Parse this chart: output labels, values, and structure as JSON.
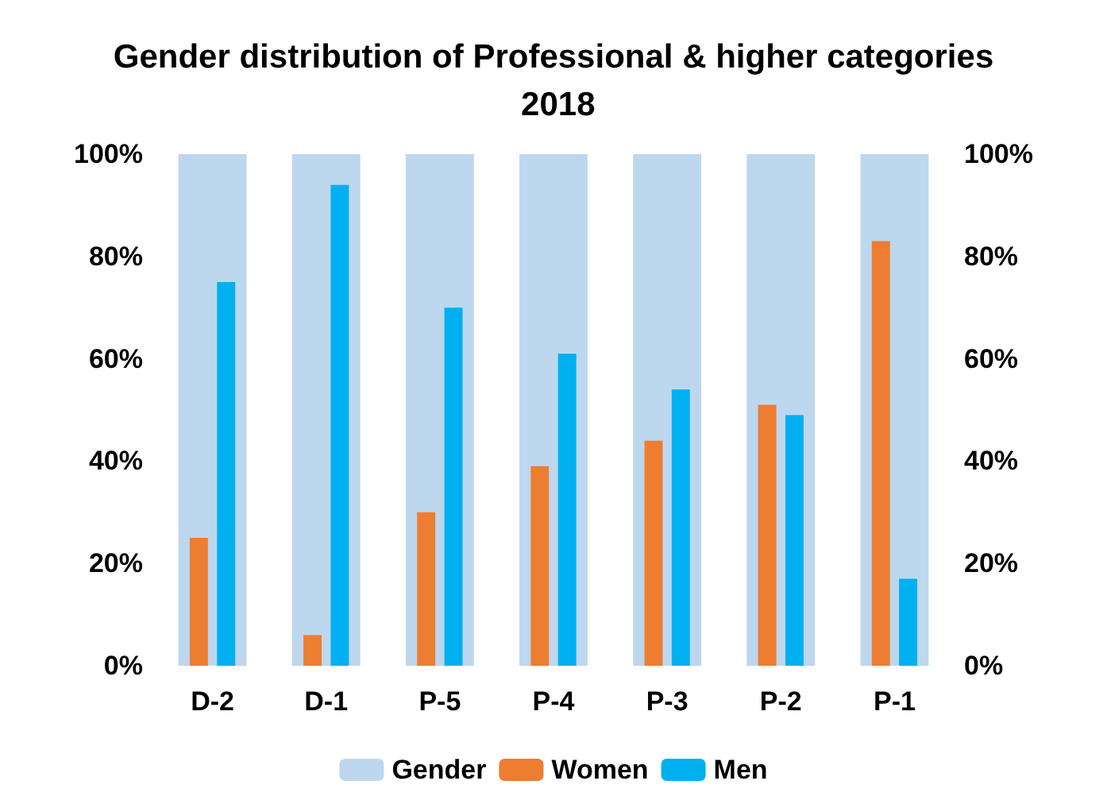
{
  "chart_data": {
    "type": "bar",
    "title": "Gender distribution of Professional & higher categories 2018",
    "categories": [
      "D-2",
      "D-1",
      "P-5",
      "P-4",
      "P-3",
      "P-2",
      "P-1"
    ],
    "series": [
      {
        "name": "Gender",
        "color": "#bdd7ee",
        "axis": "y2",
        "values": [
          100,
          100,
          100,
          100,
          100,
          100,
          100
        ]
      },
      {
        "name": "Women",
        "color": "#ed7d31",
        "values": [
          25,
          6,
          30,
          39,
          44,
          51,
          83
        ]
      },
      {
        "name": "Men",
        "color": "#00b0f0",
        "values": [
          75,
          94,
          70,
          61,
          54,
          49,
          17
        ]
      }
    ],
    "ylim": [
      0,
      100
    ],
    "yticks": [
      {
        "value": 0,
        "label": "0%"
      },
      {
        "value": 20,
        "label": "20%"
      },
      {
        "value": 40,
        "label": "40%"
      },
      {
        "value": 60,
        "label": "60%"
      },
      {
        "value": 80,
        "label": "80%"
      },
      {
        "value": 100,
        "label": "100%"
      }
    ],
    "y2lim": [
      0,
      100
    ],
    "y2ticks": [
      {
        "value": 0,
        "label": "0%"
      },
      {
        "value": 20,
        "label": "20%"
      },
      {
        "value": 40,
        "label": "40%"
      },
      {
        "value": 60,
        "label": "60%"
      },
      {
        "value": 80,
        "label": "80%"
      },
      {
        "value": 100,
        "label": "100%"
      }
    ],
    "grid": false,
    "legend": "bottom"
  }
}
